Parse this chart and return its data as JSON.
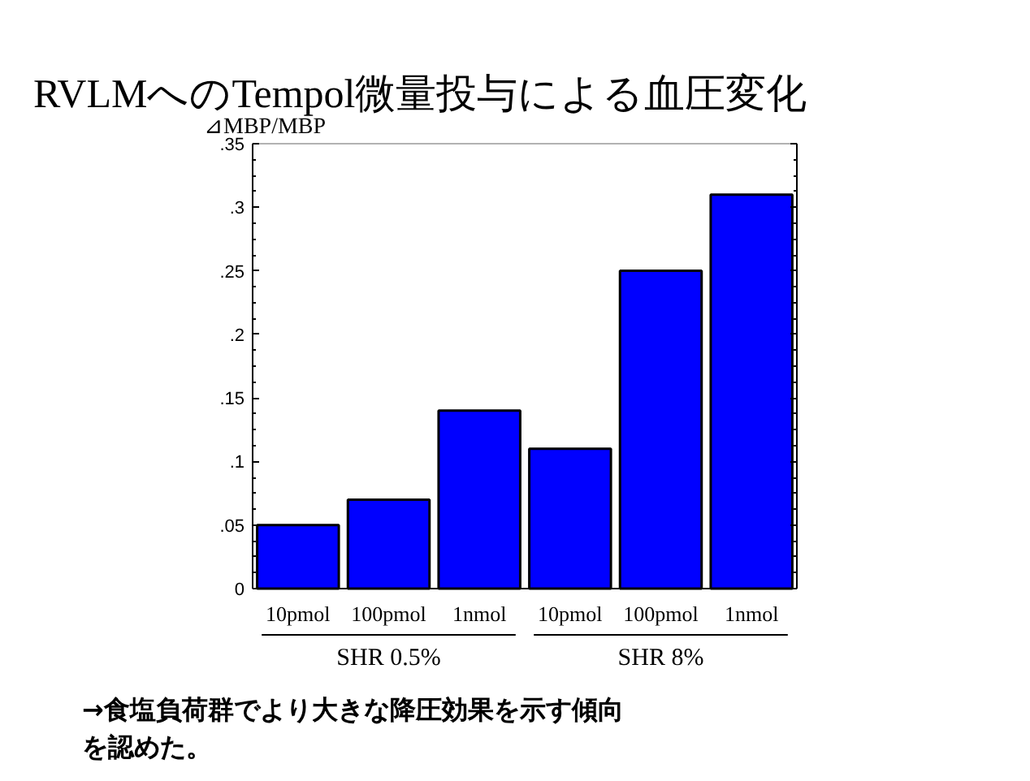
{
  "chart_data": {
    "type": "bar",
    "title": "RVLMへのTempol微量投与による血圧変化",
    "ylabel": "⊿MBP/MBP",
    "categories": [
      "10pmol",
      "100pmol",
      "1nmol",
      "10pmol",
      "100pmol",
      "1nmol"
    ],
    "values": [
      0.05,
      0.07,
      0.14,
      0.11,
      0.25,
      0.31
    ],
    "color": "#0000ff",
    "ylim": [
      0,
      0.35
    ],
    "yticks": [
      0,
      {
        "value": 0.05,
        "label": ".05"
      },
      {
        "value": 0.1,
        "label": ".1"
      },
      {
        "value": 0.15,
        "label": ".15"
      },
      {
        "value": 0.2,
        "label": ".2"
      },
      {
        "value": 0.25,
        "label": ".25"
      },
      {
        "value": 0.3,
        "label": ".3"
      },
      {
        "value": 0.35,
        "label": ".35"
      }
    ],
    "grid": false,
    "annotations": [
      "SHR 0.5%",
      "SHR 8%",
      "→食塩負荷群でより大きな降圧効果を示す傾向を認めた。"
    ]
  }
}
